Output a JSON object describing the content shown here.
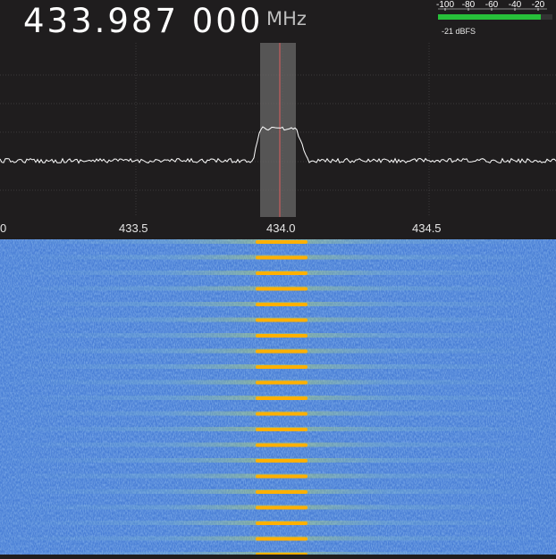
{
  "frequency": {
    "value": "433.987 000",
    "unit": "MHz"
  },
  "meter": {
    "ticks": [
      "-100",
      "-80",
      "-60",
      "-40",
      "-20"
    ],
    "level_label": "-21 dBFS",
    "level_fraction": 0.9
  },
  "scale": {
    "ticks": [
      "0",
      "433.5",
      "434.0",
      "434.5"
    ]
  },
  "colors": {
    "background": "#1f1d1e",
    "trace": "#ffffff",
    "center_line": "#e06060",
    "meter_bar": "#27c03a",
    "waterfall_base": "#4a7fd6",
    "signal": "#ffb000"
  }
}
